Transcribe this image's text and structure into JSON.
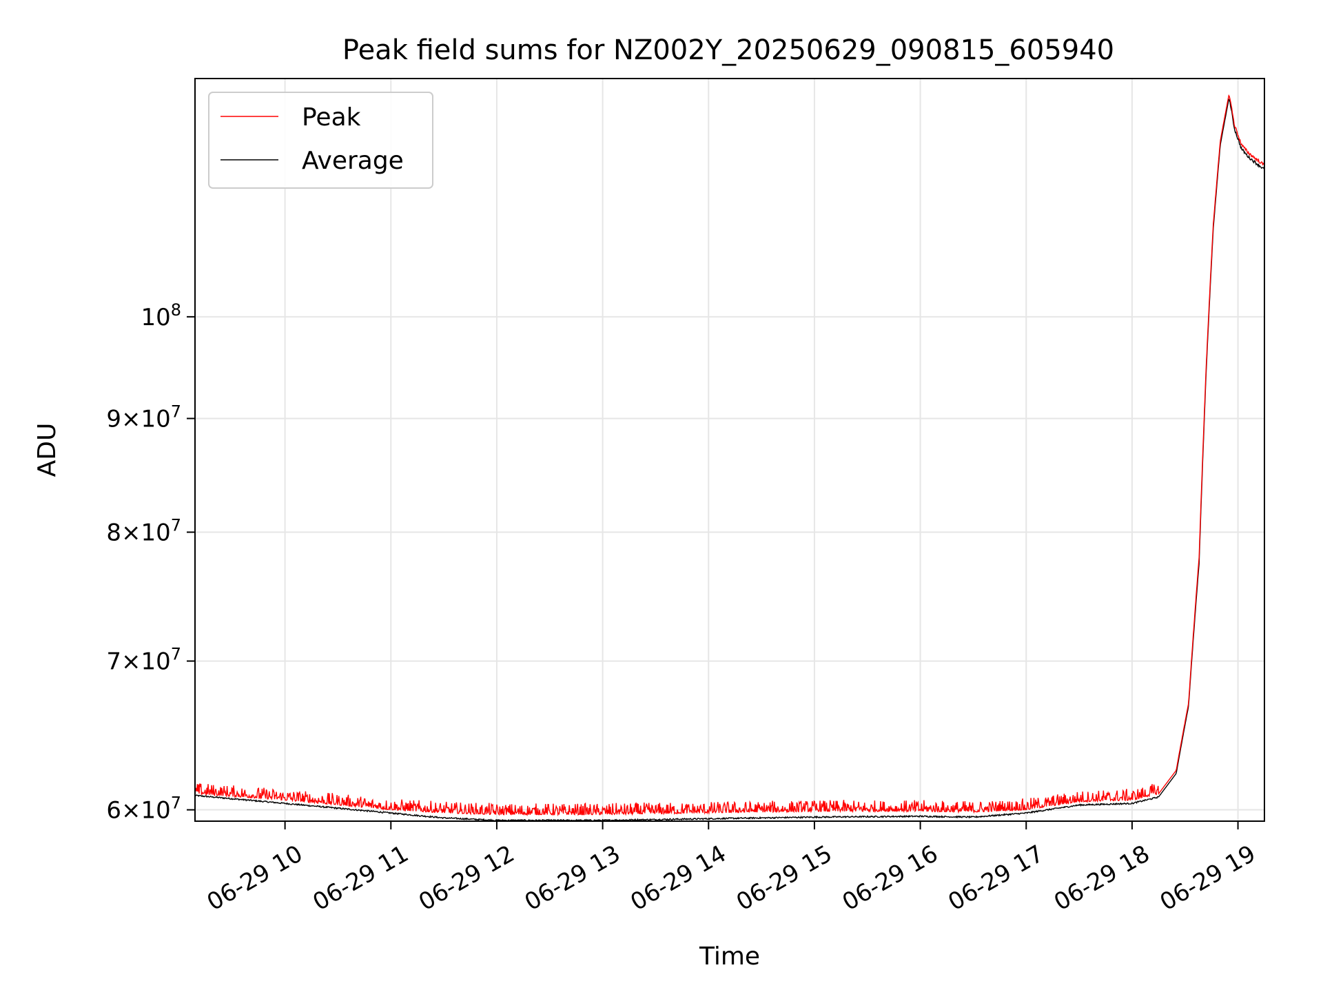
{
  "chart_data": {
    "type": "line",
    "title": "Peak field sums for NZ002Y_20250629_090815_605940",
    "xlabel": "Time",
    "ylabel": "ADU",
    "y_scale": "log",
    "grid": true,
    "legend_position": "top-left",
    "xlim": [
      "2025-06-29 09:09",
      "2025-06-29 19:15"
    ],
    "ylim": [
      59300000,
      128000000
    ],
    "x_ticks": [
      {
        "value": "2025-06-29 10:00",
        "label": "06-29 10"
      },
      {
        "value": "2025-06-29 11:00",
        "label": "06-29 11"
      },
      {
        "value": "2025-06-29 12:00",
        "label": "06-29 12"
      },
      {
        "value": "2025-06-29 13:00",
        "label": "06-29 13"
      },
      {
        "value": "2025-06-29 14:00",
        "label": "06-29 14"
      },
      {
        "value": "2025-06-29 15:00",
        "label": "06-29 15"
      },
      {
        "value": "2025-06-29 16:00",
        "label": "06-29 16"
      },
      {
        "value": "2025-06-29 17:00",
        "label": "06-29 17"
      },
      {
        "value": "2025-06-29 18:00",
        "label": "06-29 18"
      },
      {
        "value": "2025-06-29 19:00",
        "label": "06-29 19"
      }
    ],
    "y_ticks": [
      {
        "value": 60000000,
        "coef": "6",
        "exp": "7"
      },
      {
        "value": 70000000,
        "coef": "7",
        "exp": "7"
      },
      {
        "value": 80000000,
        "coef": "8",
        "exp": "7"
      },
      {
        "value": 90000000,
        "coef": "9",
        "exp": "7"
      },
      {
        "value": 100000000,
        "coef": "",
        "exp": "8"
      }
    ],
    "series": [
      {
        "name": "Peak",
        "color": "#ff0000",
        "noise_band": 0.012,
        "x": [
          "2025-06-29 09:09",
          "2025-06-29 10:00",
          "2025-06-29 11:00",
          "2025-06-29 11:30",
          "2025-06-29 12:00",
          "2025-06-29 13:00",
          "2025-06-29 14:00",
          "2025-06-29 15:00",
          "2025-06-29 16:00",
          "2025-06-29 16:30",
          "2025-06-29 17:00",
          "2025-06-29 17:30",
          "2025-06-29 18:00",
          "2025-06-29 18:15",
          "2025-06-29 18:25",
          "2025-06-29 18:32",
          "2025-06-29 18:38",
          "2025-06-29 18:42",
          "2025-06-29 18:46",
          "2025-06-29 18:50",
          "2025-06-29 18:55",
          "2025-06-29 18:58",
          "2025-06-29 19:02",
          "2025-06-29 19:06",
          "2025-06-29 19:10",
          "2025-06-29 19:15"
        ],
        "y": [
          61000000,
          60600000,
          60000000,
          59800000,
          59700000,
          59700000,
          59800000,
          59900000,
          59900000,
          59850000,
          60000000,
          60500000,
          60600000,
          61000000,
          62500000,
          67000000,
          78000000,
          95000000,
          110000000,
          120000000,
          126000000,
          122000000,
          119500000,
          118500000,
          117800000,
          117000000
        ]
      },
      {
        "name": "Average",
        "color": "#000000",
        "noise_band": 0,
        "x": [
          "2025-06-29 09:09",
          "2025-06-29 10:00",
          "2025-06-29 11:00",
          "2025-06-29 11:30",
          "2025-06-29 12:00",
          "2025-06-29 13:00",
          "2025-06-29 14:00",
          "2025-06-29 15:00",
          "2025-06-29 16:00",
          "2025-06-29 16:30",
          "2025-06-29 17:00",
          "2025-06-29 17:30",
          "2025-06-29 18:00",
          "2025-06-29 18:15",
          "2025-06-29 18:25",
          "2025-06-29 18:32",
          "2025-06-29 18:38",
          "2025-06-29 18:42",
          "2025-06-29 18:46",
          "2025-06-29 18:50",
          "2025-06-29 18:55",
          "2025-06-29 18:58",
          "2025-06-29 19:02",
          "2025-06-29 19:06",
          "2025-06-29 19:10",
          "2025-06-29 19:15"
        ],
        "y": [
          60900000,
          60400000,
          59800000,
          59500000,
          59350000,
          59350000,
          59450000,
          59550000,
          59600000,
          59550000,
          59800000,
          60300000,
          60400000,
          60800000,
          62300000,
          66800000,
          77500000,
          94500000,
          109500000,
          119500000,
          125500000,
          121500000,
          119000000,
          118000000,
          117300000,
          116500000
        ]
      }
    ]
  }
}
